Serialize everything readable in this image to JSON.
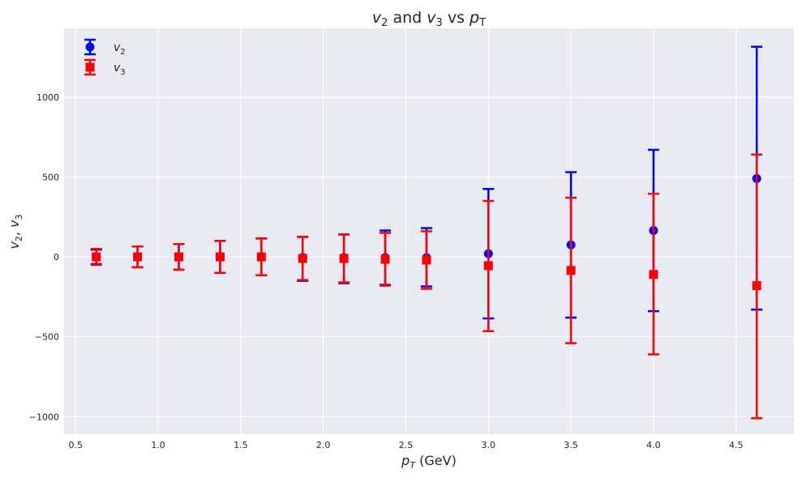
{
  "chart_data": {
    "type": "scatter",
    "title": {
      "a": "v",
      "a_sub": "2",
      "b": " and ",
      "c": "v",
      "c_sub": "3",
      "d": " vs ",
      "e": "p",
      "e_sub": "T"
    },
    "xlabel": {
      "main": "p",
      "sub": "T",
      "rest": " (GeV)"
    },
    "ylabel": {
      "a": "v",
      "a_sub": "2",
      "sep": ", ",
      "b": "v",
      "b_sub": "3"
    },
    "xlim": [
      0.43,
      4.85
    ],
    "ylim": [
      -1110,
      1430
    ],
    "x_ticks": [
      0.5,
      1.0,
      1.5,
      2.0,
      2.5,
      3.0,
      3.5,
      4.0,
      4.5
    ],
    "x_tick_labels": [
      "0.5",
      "1.0",
      "1.5",
      "2.0",
      "2.5",
      "3.0",
      "3.5",
      "4.0",
      "4.5"
    ],
    "y_ticks": [
      -1000,
      -500,
      0,
      500,
      1000
    ],
    "y_tick_labels": [
      "−1000",
      "−500",
      "0",
      "500",
      "1000"
    ],
    "grid": true,
    "legend_position": "top-left",
    "colors": {
      "background": "#eaeaf2",
      "grid": "#ffffff",
      "v2": "#0000ff",
      "v3": "#ff0000"
    },
    "series": [
      {
        "name": {
          "main": "v",
          "sub": "2"
        },
        "marker": "circle",
        "color": "#0000ff",
        "x": [
          0.625,
          0.875,
          1.125,
          1.375,
          1.625,
          1.875,
          2.125,
          2.375,
          2.625,
          3.0,
          3.5,
          4.0,
          4.625
        ],
        "y": [
          0,
          0,
          0,
          0,
          0,
          -5,
          -5,
          -5,
          -5,
          20,
          75,
          165,
          490
        ],
        "yerr_low": [
          45,
          65,
          80,
          100,
          115,
          145,
          160,
          170,
          180,
          405,
          455,
          505,
          820
        ],
        "yerr_high": [
          45,
          65,
          80,
          100,
          115,
          130,
          145,
          170,
          185,
          405,
          455,
          505,
          825
        ]
      },
      {
        "name": {
          "main": "v",
          "sub": "3"
        },
        "marker": "square",
        "color": "#ff0000",
        "x": [
          0.625,
          0.875,
          1.125,
          1.375,
          1.625,
          1.875,
          2.125,
          2.375,
          2.625,
          3.0,
          3.5,
          4.0,
          4.625
        ],
        "y": [
          0,
          0,
          0,
          0,
          0,
          -10,
          -10,
          -15,
          -20,
          -55,
          -85,
          -110,
          -180
        ],
        "yerr_low": [
          50,
          65,
          80,
          100,
          115,
          135,
          150,
          165,
          180,
          410,
          455,
          500,
          830
        ],
        "yerr_high": [
          50,
          65,
          80,
          100,
          115,
          135,
          150,
          165,
          180,
          405,
          455,
          505,
          820
        ]
      }
    ]
  }
}
